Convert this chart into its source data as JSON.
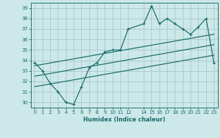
{
  "xlabel": "Humidex (Indice chaleur)",
  "ylabel": "",
  "background_color": "#cce8e8",
  "grid_color": "#aacccc",
  "line_color": "#1a6b6b",
  "xlim": [
    -0.5,
    23.5
  ],
  "ylim": [
    29.5,
    39.5
  ],
  "xticks": [
    0,
    1,
    2,
    3,
    4,
    5,
    6,
    7,
    8,
    9,
    10,
    11,
    12,
    14,
    15,
    16,
    17,
    18,
    19,
    20,
    21,
    22,
    23
  ],
  "yticks": [
    30,
    31,
    32,
    33,
    34,
    35,
    36,
    37,
    38,
    39
  ],
  "line1_x": [
    0,
    1,
    2,
    3,
    4,
    5,
    6,
    7,
    8,
    9,
    10,
    11,
    12,
    14,
    15,
    16,
    17,
    18,
    19,
    20,
    21,
    22,
    23
  ],
  "line1_y": [
    33.8,
    33.0,
    31.8,
    31.0,
    30.0,
    29.8,
    31.5,
    33.3,
    33.8,
    34.8,
    35.0,
    35.0,
    37.0,
    37.5,
    39.2,
    37.5,
    38.0,
    37.5,
    37.0,
    36.5,
    37.2,
    38.0,
    33.8
  ],
  "line2_x": [
    0,
    23
  ],
  "line2_y": [
    33.5,
    36.5
  ],
  "line3_x": [
    0,
    23
  ],
  "line3_y": [
    32.5,
    35.5
  ],
  "line4_x": [
    0,
    23
  ],
  "line4_y": [
    31.5,
    34.5
  ]
}
